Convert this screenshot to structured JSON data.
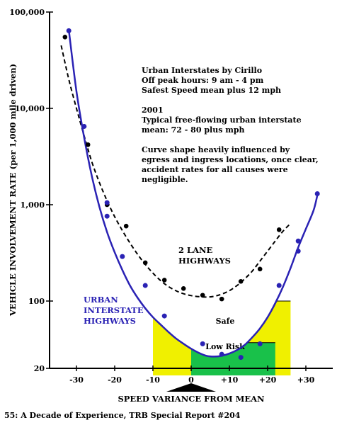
{
  "chart_data": {
    "type": "line",
    "xlabel": "SPEED VARIANCE FROM MEAN",
    "ylabel": "VEHICLE INVOLVEMENT RATE (per 1,000 mile driven)",
    "xlim": [
      -35,
      35
    ],
    "ylim": [
      20,
      100000
    ],
    "yscale": "log",
    "grid": false,
    "x_ticks": [
      -30,
      -20,
      -10,
      0,
      10,
      20,
      30
    ],
    "x_tick_labels": [
      "-30",
      "-20",
      "-10",
      "0",
      "+10",
      "+20",
      "+30"
    ],
    "y_ticks": [
      100000,
      10000,
      1000,
      100,
      20
    ],
    "y_tick_labels": [
      "100,000",
      "10,000",
      "1,000",
      "100",
      "20"
    ],
    "series": [
      {
        "name": "2 LANE HIGHWAYS",
        "color": "#000000",
        "style": "dashed-curve-with-points",
        "points": [
          [
            -33,
            55000
          ],
          [
            -28,
            6500
          ],
          [
            -27,
            4200
          ],
          [
            -22,
            1000
          ],
          [
            -17,
            600
          ],
          [
            -12,
            250
          ],
          [
            -7,
            165
          ],
          [
            -2,
            135
          ],
          [
            3,
            115
          ],
          [
            8,
            105
          ],
          [
            13,
            160
          ],
          [
            18,
            215
          ],
          [
            23,
            550
          ]
        ],
        "curve": [
          [
            -34,
            45000
          ],
          [
            -32,
            20000
          ],
          [
            -30,
            10000
          ],
          [
            -28,
            5200
          ],
          [
            -26,
            2800
          ],
          [
            -24,
            1700
          ],
          [
            -22,
            1100
          ],
          [
            -20,
            750
          ],
          [
            -18,
            540
          ],
          [
            -16,
            400
          ],
          [
            -14,
            305
          ],
          [
            -12,
            240
          ],
          [
            -10,
            195
          ],
          [
            -8,
            163
          ],
          [
            -6,
            142
          ],
          [
            -4,
            128
          ],
          [
            -2,
            119
          ],
          [
            0,
            114
          ],
          [
            2,
            111
          ],
          [
            4,
            110
          ],
          [
            6,
            112
          ],
          [
            8,
            118
          ],
          [
            10,
            128
          ],
          [
            12,
            145
          ],
          [
            14,
            170
          ],
          [
            16,
            205
          ],
          [
            18,
            260
          ],
          [
            20,
            330
          ],
          [
            22,
            420
          ],
          [
            24,
            530
          ],
          [
            26,
            640
          ]
        ]
      },
      {
        "name": "URBAN INTERSTATE HIGHWAYS",
        "color": "#2a22b4",
        "style": "solid-curve-with-points",
        "points": [
          [
            -32,
            64000
          ],
          [
            -28,
            6500
          ],
          [
            -22,
            1050
          ],
          [
            -22,
            760
          ],
          [
            -18,
            290
          ],
          [
            -12,
            145
          ],
          [
            -7,
            70
          ],
          [
            3,
            36
          ],
          [
            8,
            28
          ],
          [
            13,
            26
          ],
          [
            18,
            36
          ],
          [
            23,
            145
          ],
          [
            28,
            420
          ],
          [
            28,
            330
          ],
          [
            33,
            1300
          ]
        ],
        "curve": [
          [
            -32,
            65000
          ],
          [
            -30,
            15000
          ],
          [
            -28,
            5000
          ],
          [
            -26,
            2000
          ],
          [
            -24,
            950
          ],
          [
            -22,
            520
          ],
          [
            -20,
            320
          ],
          [
            -18,
            210
          ],
          [
            -16,
            145
          ],
          [
            -14,
            108
          ],
          [
            -12,
            84
          ],
          [
            -10,
            68
          ],
          [
            -8,
            57
          ],
          [
            -6,
            48
          ],
          [
            -4,
            41
          ],
          [
            -2,
            36
          ],
          [
            0,
            32
          ],
          [
            2,
            29
          ],
          [
            4,
            27
          ],
          [
            6,
            26.5
          ],
          [
            8,
            27
          ],
          [
            10,
            28.5
          ],
          [
            12,
            31
          ],
          [
            14,
            35
          ],
          [
            16,
            42
          ],
          [
            18,
            52
          ],
          [
            20,
            68
          ],
          [
            22,
            95
          ],
          [
            24,
            140
          ],
          [
            26,
            220
          ],
          [
            28,
            360
          ],
          [
            30,
            560
          ],
          [
            32,
            870
          ],
          [
            33,
            1250
          ]
        ]
      }
    ],
    "regions": [
      {
        "label": "Safe",
        "color": "#f0f000",
        "y_top": 100,
        "x_range": [
          -10,
          26
        ]
      },
      {
        "label": "Low Risk",
        "color": "#19c14a",
        "y_top": 37,
        "x_range": [
          0,
          22
        ]
      }
    ],
    "annotations": {
      "lines": [
        "Urban Interstates by Cirillo",
        "Off peak hours: 9 am - 4 pm",
        "Safest Speed mean plus 12 mph",
        "",
        "2001",
        "Typical free-flowing urban interstate",
        " mean: 72 - 80 plus mph",
        "",
        "Curve shape heavily influenced by",
        "egress and ingress locations, once clear,",
        "accident rates for all causes were",
        "negligible."
      ],
      "two_lane_label": [
        "2 LANE",
        "HIGHWAYS"
      ],
      "urban_label": [
        "URBAN",
        "INTERSTATE",
        "HIGHWAYS"
      ]
    },
    "footer": "55: A Decade of Experience, TRB Special Report #204"
  }
}
